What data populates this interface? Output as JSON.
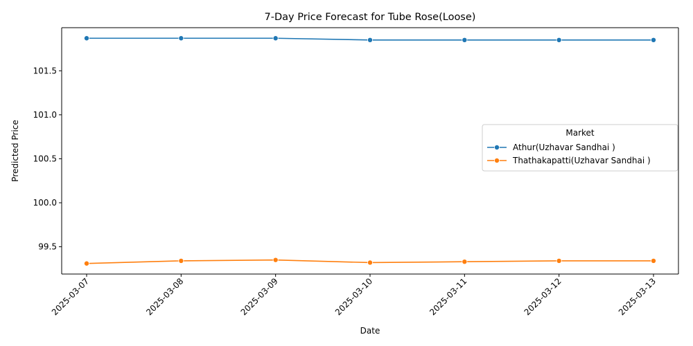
{
  "chart_data": {
    "type": "line",
    "title": "7-Day Price Forecast for Tube Rose(Loose)",
    "xlabel": "Date",
    "ylabel": "Predicted Price",
    "x": [
      "2025-03-07",
      "2025-03-08",
      "2025-03-09",
      "2025-03-10",
      "2025-03-11",
      "2025-03-12",
      "2025-03-13"
    ],
    "yticks": [
      "99.5",
      "100.0",
      "100.5",
      "101.0",
      "101.5"
    ],
    "ylim": [
      99.19,
      101.99
    ],
    "grid": false,
    "legend": {
      "title": "Market",
      "position": "center-right"
    },
    "series": [
      {
        "name": "Athur(Uzhavar Sandhai )",
        "color": "#1f77b4",
        "values": [
          101.87,
          101.87,
          101.87,
          101.85,
          101.85,
          101.85,
          101.85
        ]
      },
      {
        "name": "Thathakapatti(Uzhavar Sandhai )",
        "color": "#ff7f0e",
        "values": [
          99.31,
          99.34,
          99.35,
          99.32,
          99.33,
          99.34,
          99.34
        ]
      }
    ]
  }
}
